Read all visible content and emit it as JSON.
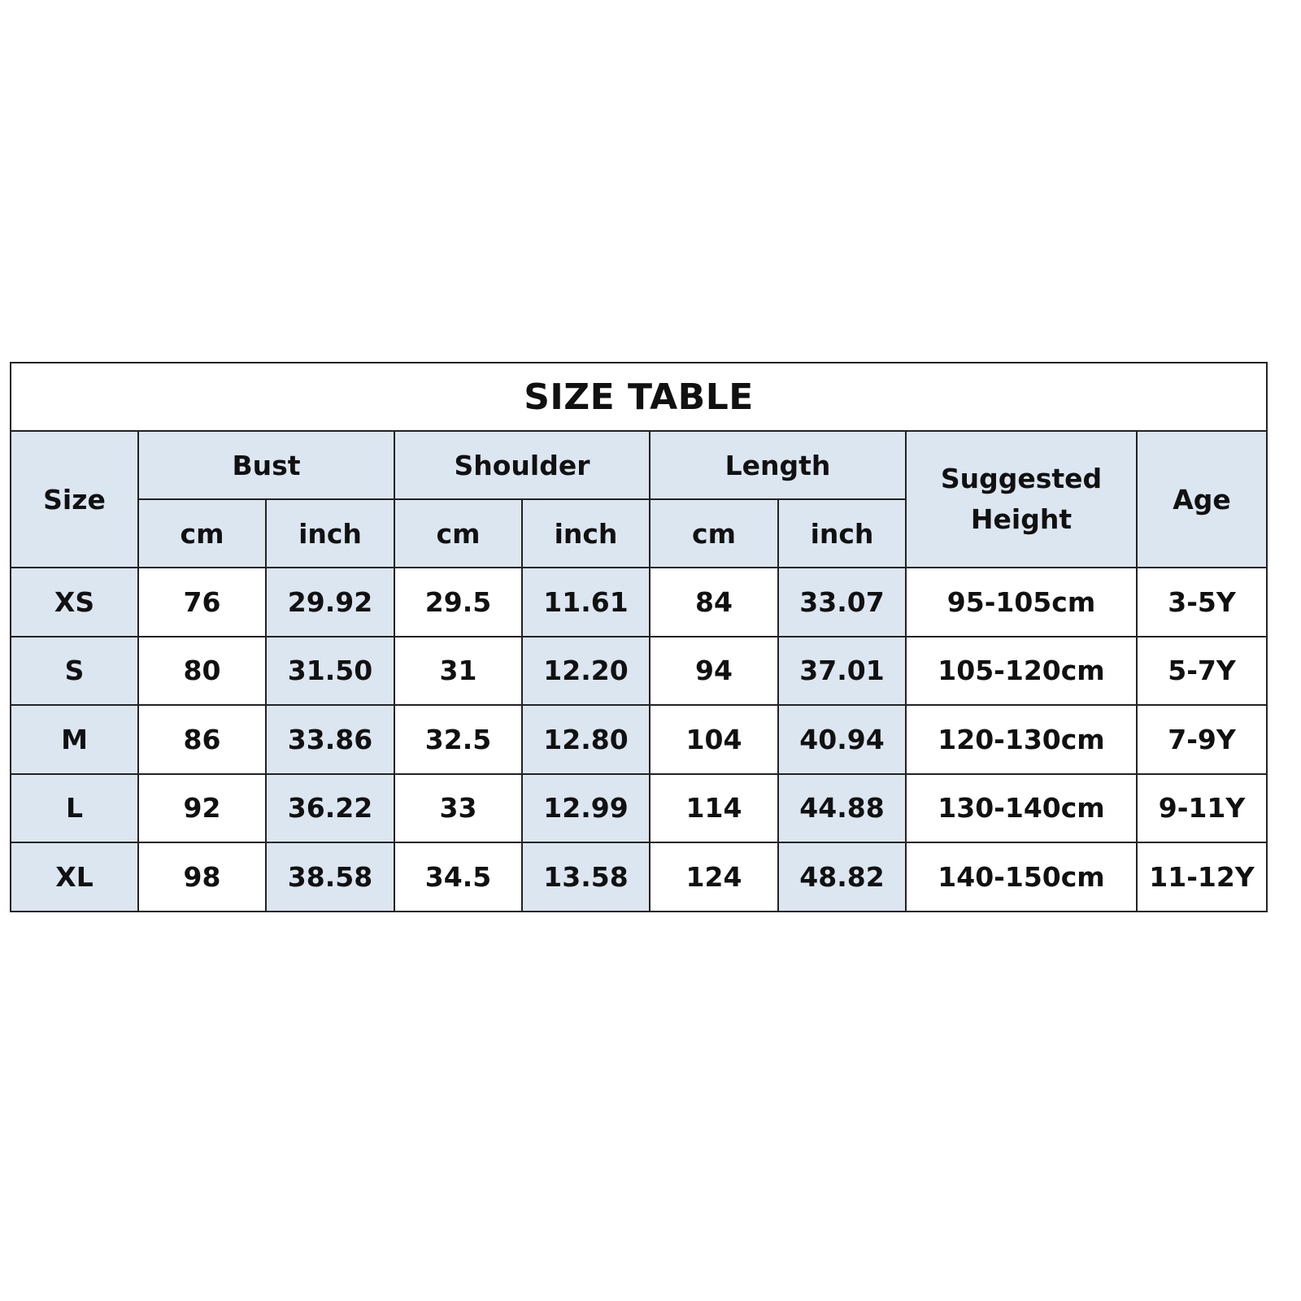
{
  "title": "SIZE TABLE",
  "headers": {
    "size": "Size",
    "bust": "Bust",
    "shoulder": "Shoulder",
    "length": "Length",
    "suggested_height": "Suggested Height",
    "age": "Age",
    "cm": "cm",
    "inch": "inch"
  },
  "rows": [
    {
      "size": "XS",
      "bust_cm": "76",
      "bust_inch": "29.92",
      "shoulder_cm": "29.5",
      "shoulder_inch": "11.61",
      "length_cm": "84",
      "length_inch": "33.07",
      "height": "95-105cm",
      "age": "3-5Y"
    },
    {
      "size": "S",
      "bust_cm": "80",
      "bust_inch": "31.50",
      "shoulder_cm": "31",
      "shoulder_inch": "12.20",
      "length_cm": "94",
      "length_inch": "37.01",
      "height": "105-120cm",
      "age": "5-7Y"
    },
    {
      "size": "M",
      "bust_cm": "86",
      "bust_inch": "33.86",
      "shoulder_cm": "32.5",
      "shoulder_inch": "12.80",
      "length_cm": "104",
      "length_inch": "40.94",
      "height": "120-130cm",
      "age": "7-9Y"
    },
    {
      "size": "L",
      "bust_cm": "92",
      "bust_inch": "36.22",
      "shoulder_cm": "33",
      "shoulder_inch": "12.99",
      "length_cm": "114",
      "length_inch": "44.88",
      "height": "130-140cm",
      "age": "9-11Y"
    },
    {
      "size": "XL",
      "bust_cm": "98",
      "bust_inch": "38.58",
      "shoulder_cm": "34.5",
      "shoulder_inch": "13.58",
      "length_cm": "124",
      "length_inch": "48.82",
      "height": "140-150cm",
      "age": "11-12Y"
    }
  ],
  "colors": {
    "header_fill": "#dce6f1",
    "border": "#222222"
  }
}
